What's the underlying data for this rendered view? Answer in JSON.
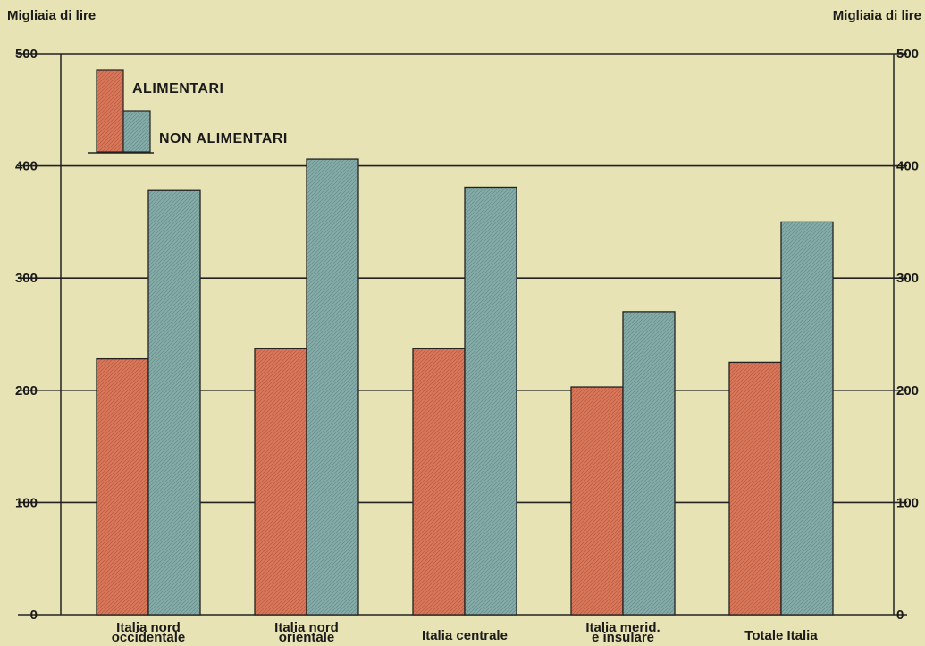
{
  "chart_data": {
    "type": "bar",
    "left_axis_label": "Migliaia di lire",
    "right_axis_label": "Migliaia di lire",
    "ylim": [
      0,
      500
    ],
    "yticks": [
      "0",
      "100",
      "200",
      "300",
      "400",
      "500"
    ],
    "grid": true,
    "legend_position": "top-left",
    "categories": [
      [
        "Italia nord",
        "occidentale"
      ],
      [
        "Italia nord",
        "orientale"
      ],
      [
        "Italia centrale"
      ],
      [
        "Italia merid.",
        "e insulare"
      ],
      [
        "Totale Italia"
      ]
    ],
    "series": [
      {
        "name": "ALIMENTARI",
        "color": "#d9775a",
        "values": [
          228,
          237,
          237,
          203,
          225
        ]
      },
      {
        "name": "NON ALIMENTARI",
        "color": "#86aca9",
        "values": [
          378,
          406,
          381,
          270,
          350
        ]
      }
    ]
  }
}
